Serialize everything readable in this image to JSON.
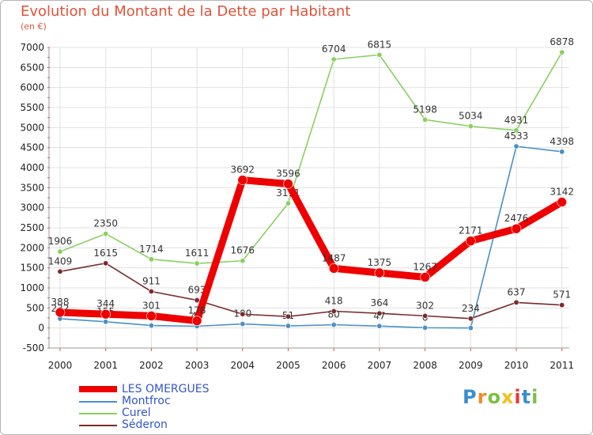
{
  "chart_data": {
    "type": "line",
    "title": "Evolution du Montant de la Dette par Habitant",
    "subtitle": "(en €)",
    "categories": [
      "2000",
      "2001",
      "2002",
      "2003",
      "2004",
      "2005",
      "2006",
      "2007",
      "2008",
      "2009",
      "2010",
      "2011"
    ],
    "ylim": [
      -500,
      7000
    ],
    "yticks": [
      "-500",
      "0",
      "500",
      "1000",
      "1500",
      "2000",
      "2500",
      "3000",
      "3500",
      "4000",
      "4500",
      "5000",
      "5500",
      "6000",
      "6500",
      "7000"
    ],
    "grid": true,
    "legend_position": "bottom-left",
    "series": [
      {
        "name": "Montfroc",
        "color": "#4a90c8",
        "values": [
          232,
          155,
          61,
          43,
          100,
          51,
          80,
          47,
          6,
          0,
          4533,
          4398
        ],
        "labels": [
          "232",
          "155",
          "",
          "43",
          "100",
          "51",
          "80",
          "47",
          "6",
          "",
          "4533",
          "4398"
        ]
      },
      {
        "name": "Curel",
        "color": "#88d060",
        "values": [
          1906,
          2350,
          1714,
          1611,
          1676,
          3111,
          6704,
          6815,
          5198,
          5034,
          4931,
          6878
        ],
        "labels": [
          "1906",
          "2350",
          "1714",
          "1611",
          "1676",
          "3111",
          "6704",
          "6815",
          "5198",
          "5034",
          "4931",
          "6878"
        ]
      },
      {
        "name": "Séderon",
        "color": "#7a2b2b",
        "values": [
          1409,
          1615,
          911,
          693,
          344,
          285,
          418,
          364,
          302,
          234,
          637,
          571
        ],
        "labels": [
          "1409",
          "1615",
          "911",
          "693",
          "",
          "",
          "418",
          "364",
          "302",
          "234",
          "637",
          "571"
        ]
      },
      {
        "name": "LES OMERGUES",
        "color": "#ee0000",
        "values": [
          388,
          344,
          301,
          178,
          3692,
          3596,
          1487,
          1375,
          1267,
          2171,
          2476,
          3142
        ],
        "labels": [
          "388",
          "344",
          "301",
          "178",
          "3692",
          "3596",
          "1487",
          "1375",
          "1267",
          "2171",
          "2476",
          "3142"
        ]
      }
    ]
  },
  "legend": [
    {
      "label": "LES OMERGUES",
      "color": "#ee0000"
    },
    {
      "label": "Montfroc",
      "color": "#4a90c8"
    },
    {
      "label": "Curel",
      "color": "#88d060"
    },
    {
      "label": "Séderon",
      "color": "#7a2b2b"
    }
  ],
  "logo": {
    "letters": [
      "P",
      "r",
      "o",
      "x",
      "i",
      "t",
      "i"
    ],
    "colors": [
      "#3a8fd0",
      "#f08a24",
      "#7bc043",
      "#f0c020",
      "#e03c3c",
      "#3a8fd0",
      "#7bc043"
    ]
  }
}
